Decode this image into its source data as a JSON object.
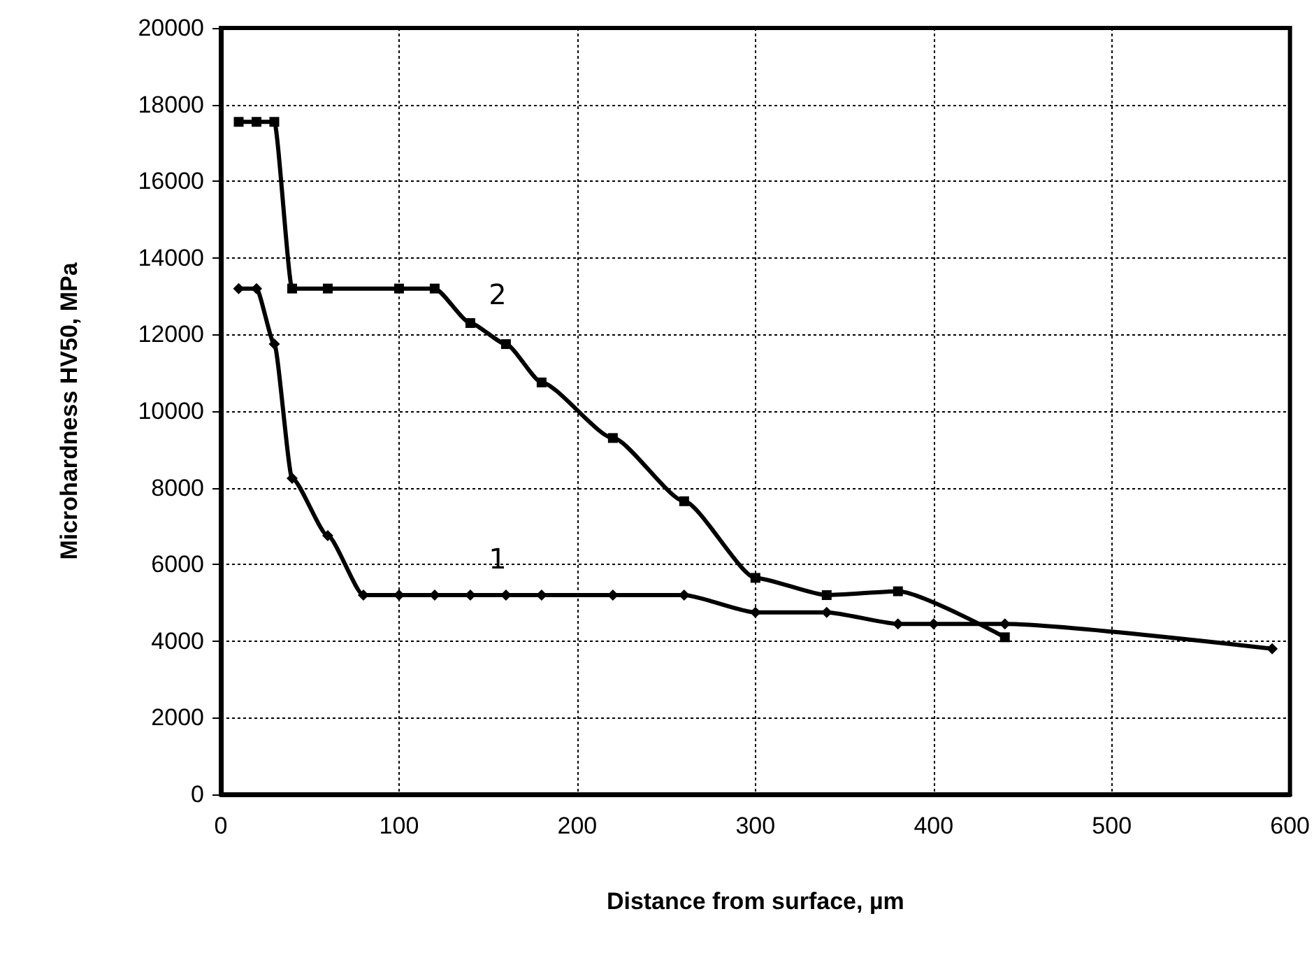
{
  "chart_data": {
    "type": "line",
    "xlabel": "Distance from surface, µm",
    "ylabel": "Microhardness HV50, MPa",
    "xlim": [
      0,
      600
    ],
    "xticks": [
      0,
      100,
      200,
      300,
      400,
      500,
      600
    ],
    "ylim": [
      0,
      20000
    ],
    "yticks": [
      0,
      2000,
      4000,
      6000,
      8000,
      10000,
      12000,
      14000,
      16000,
      18000,
      20000
    ],
    "grid": true,
    "series": [
      {
        "color": "#000000",
        "marker": "diamond",
        "x": [
          10,
          20,
          30,
          40,
          60,
          80,
          100,
          120,
          140,
          160,
          180,
          220,
          260,
          300,
          340,
          380,
          400,
          440,
          590
        ],
        "values": [
          13200,
          13200,
          11750,
          8250,
          6750,
          5200,
          5200,
          5200,
          5200,
          5200,
          5200,
          5200,
          5200,
          4750,
          4750,
          4450,
          4450,
          4450,
          3800
        ]
      },
      {
        "color": "#000000",
        "marker": "square",
        "x": [
          10,
          20,
          30,
          40,
          60,
          100,
          120,
          140,
          160,
          180,
          220,
          260,
          300,
          340,
          380,
          440
        ],
        "values": [
          17550,
          17550,
          17550,
          13200,
          13200,
          13200,
          13200,
          12300,
          11750,
          10750,
          9300,
          7650,
          5650,
          5200,
          5300,
          4100
        ]
      }
    ],
    "annotations": [
      "1",
      "2"
    ]
  }
}
